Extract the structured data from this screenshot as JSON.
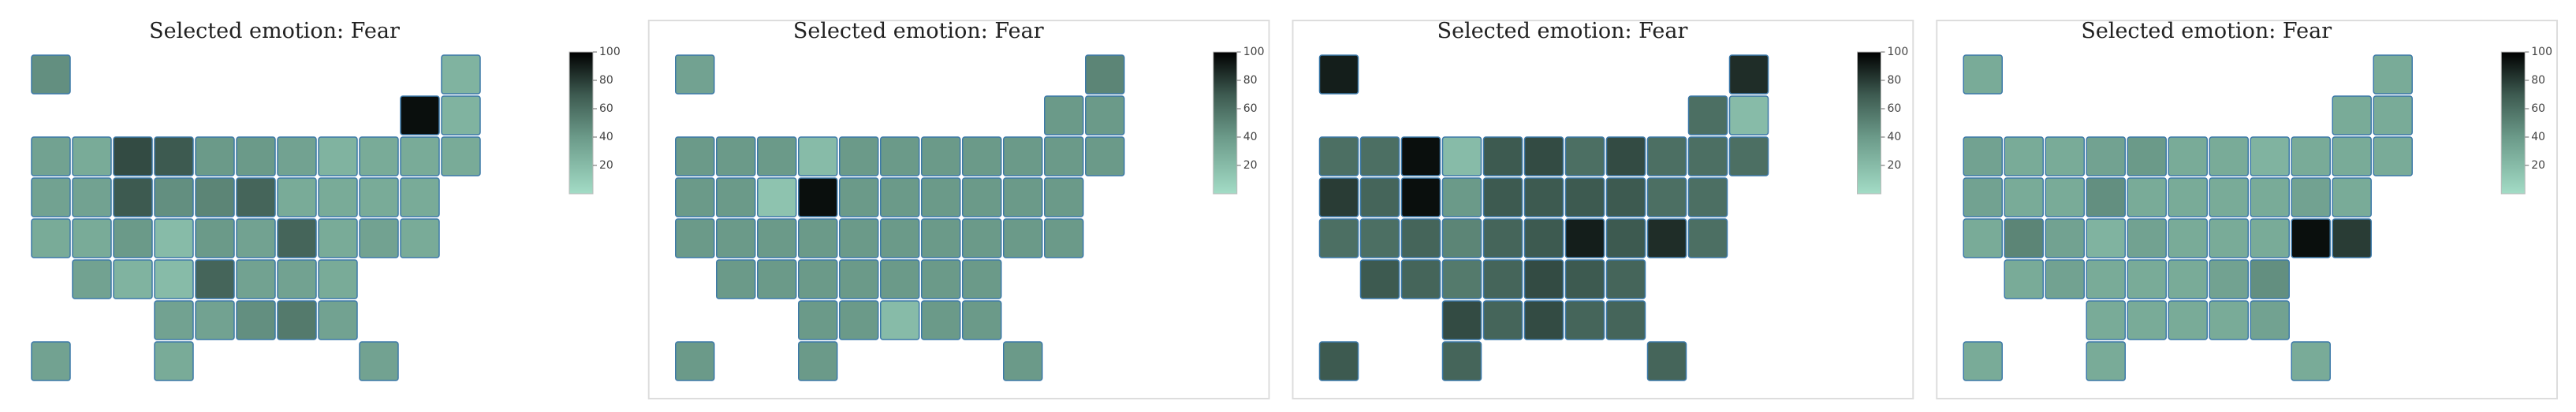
{
  "chart_data": [
    {
      "type": "choropleth",
      "title": "Selected emotion:  Fear",
      "values": [
        45,
        25,
        95,
        25,
        35,
        30,
        75,
        70,
        40,
        40,
        35,
        25,
        30,
        30,
        30,
        35,
        35,
        70,
        45,
        50,
        65,
        30,
        30,
        30,
        30,
        30,
        30,
        40,
        20,
        40,
        35,
        65,
        30,
        35,
        30,
        35,
        25,
        20,
        65,
        35,
        35,
        30,
        35,
        35,
        45,
        55,
        35,
        35,
        30,
        35
      ],
      "zlim": [
        0,
        100
      ],
      "zticks": [
        20,
        40,
        60,
        80,
        100
      ],
      "colorscale": [
        [
          0,
          "#a3dcc6"
        ],
        [
          0.4,
          "#6b9a89"
        ],
        [
          0.7,
          "#3d5a50"
        ],
        [
          1,
          "#000000"
        ]
      ]
    },
    {
      "type": "choropleth",
      "title": "Selected emotion:  Fear",
      "values": [
        35,
        50,
        40,
        40,
        40,
        40,
        40,
        20,
        40,
        40,
        40,
        40,
        40,
        40,
        40,
        40,
        40,
        15,
        95,
        40,
        40,
        40,
        40,
        40,
        40,
        40,
        40,
        40,
        40,
        40,
        40,
        40,
        40,
        40,
        40,
        40,
        40,
        40,
        40,
        40,
        40,
        40,
        40,
        40,
        20,
        40,
        40,
        40,
        40,
        40
      ],
      "zlim": [
        0,
        100
      ],
      "zticks": [
        20,
        40,
        60,
        80,
        100
      ],
      "colorscale": [
        [
          0,
          "#a3dcc6"
        ],
        [
          0.4,
          "#6b9a89"
        ],
        [
          0.7,
          "#3d5a50"
        ],
        [
          1,
          "#000000"
        ]
      ]
    },
    {
      "type": "choropleth",
      "title": "Selected emotion:  Fear",
      "values": [
        90,
        85,
        60,
        20,
        60,
        60,
        95,
        20,
        70,
        75,
        60,
        75,
        60,
        60,
        60,
        80,
        65,
        95,
        40,
        70,
        70,
        70,
        70,
        60,
        60,
        60,
        60,
        65,
        50,
        65,
        70,
        90,
        70,
        85,
        60,
        70,
        65,
        55,
        65,
        75,
        70,
        65,
        75,
        65,
        75,
        65,
        65,
        70,
        65,
        65
      ],
      "zlim": [
        0,
        100
      ],
      "zticks": [
        20,
        40,
        60,
        80,
        100
      ],
      "colorscale": [
        [
          0,
          "#a3dcc6"
        ],
        [
          0.4,
          "#6b9a89"
        ],
        [
          0.7,
          "#3d5a50"
        ],
        [
          1,
          "#000000"
        ]
      ]
    },
    {
      "type": "choropleth",
      "title": "Selected emotion:  Fear",
      "values": [
        30,
        30,
        30,
        30,
        35,
        30,
        30,
        35,
        40,
        30,
        30,
        25,
        30,
        30,
        30,
        35,
        30,
        30,
        45,
        30,
        30,
        30,
        30,
        35,
        30,
        30,
        50,
        35,
        25,
        35,
        30,
        30,
        30,
        95,
        80,
        30,
        35,
        30,
        30,
        30,
        35,
        45,
        30,
        30,
        30,
        30,
        35,
        30,
        30,
        30
      ],
      "zlim": [
        0,
        100
      ],
      "zticks": [
        20,
        40,
        60,
        80,
        100
      ],
      "colorscale": [
        [
          0,
          "#a3dcc6"
        ],
        [
          0.4,
          "#6b9a89"
        ],
        [
          0.7,
          "#3d5a50"
        ],
        [
          1,
          "#000000"
        ]
      ]
    }
  ]
}
